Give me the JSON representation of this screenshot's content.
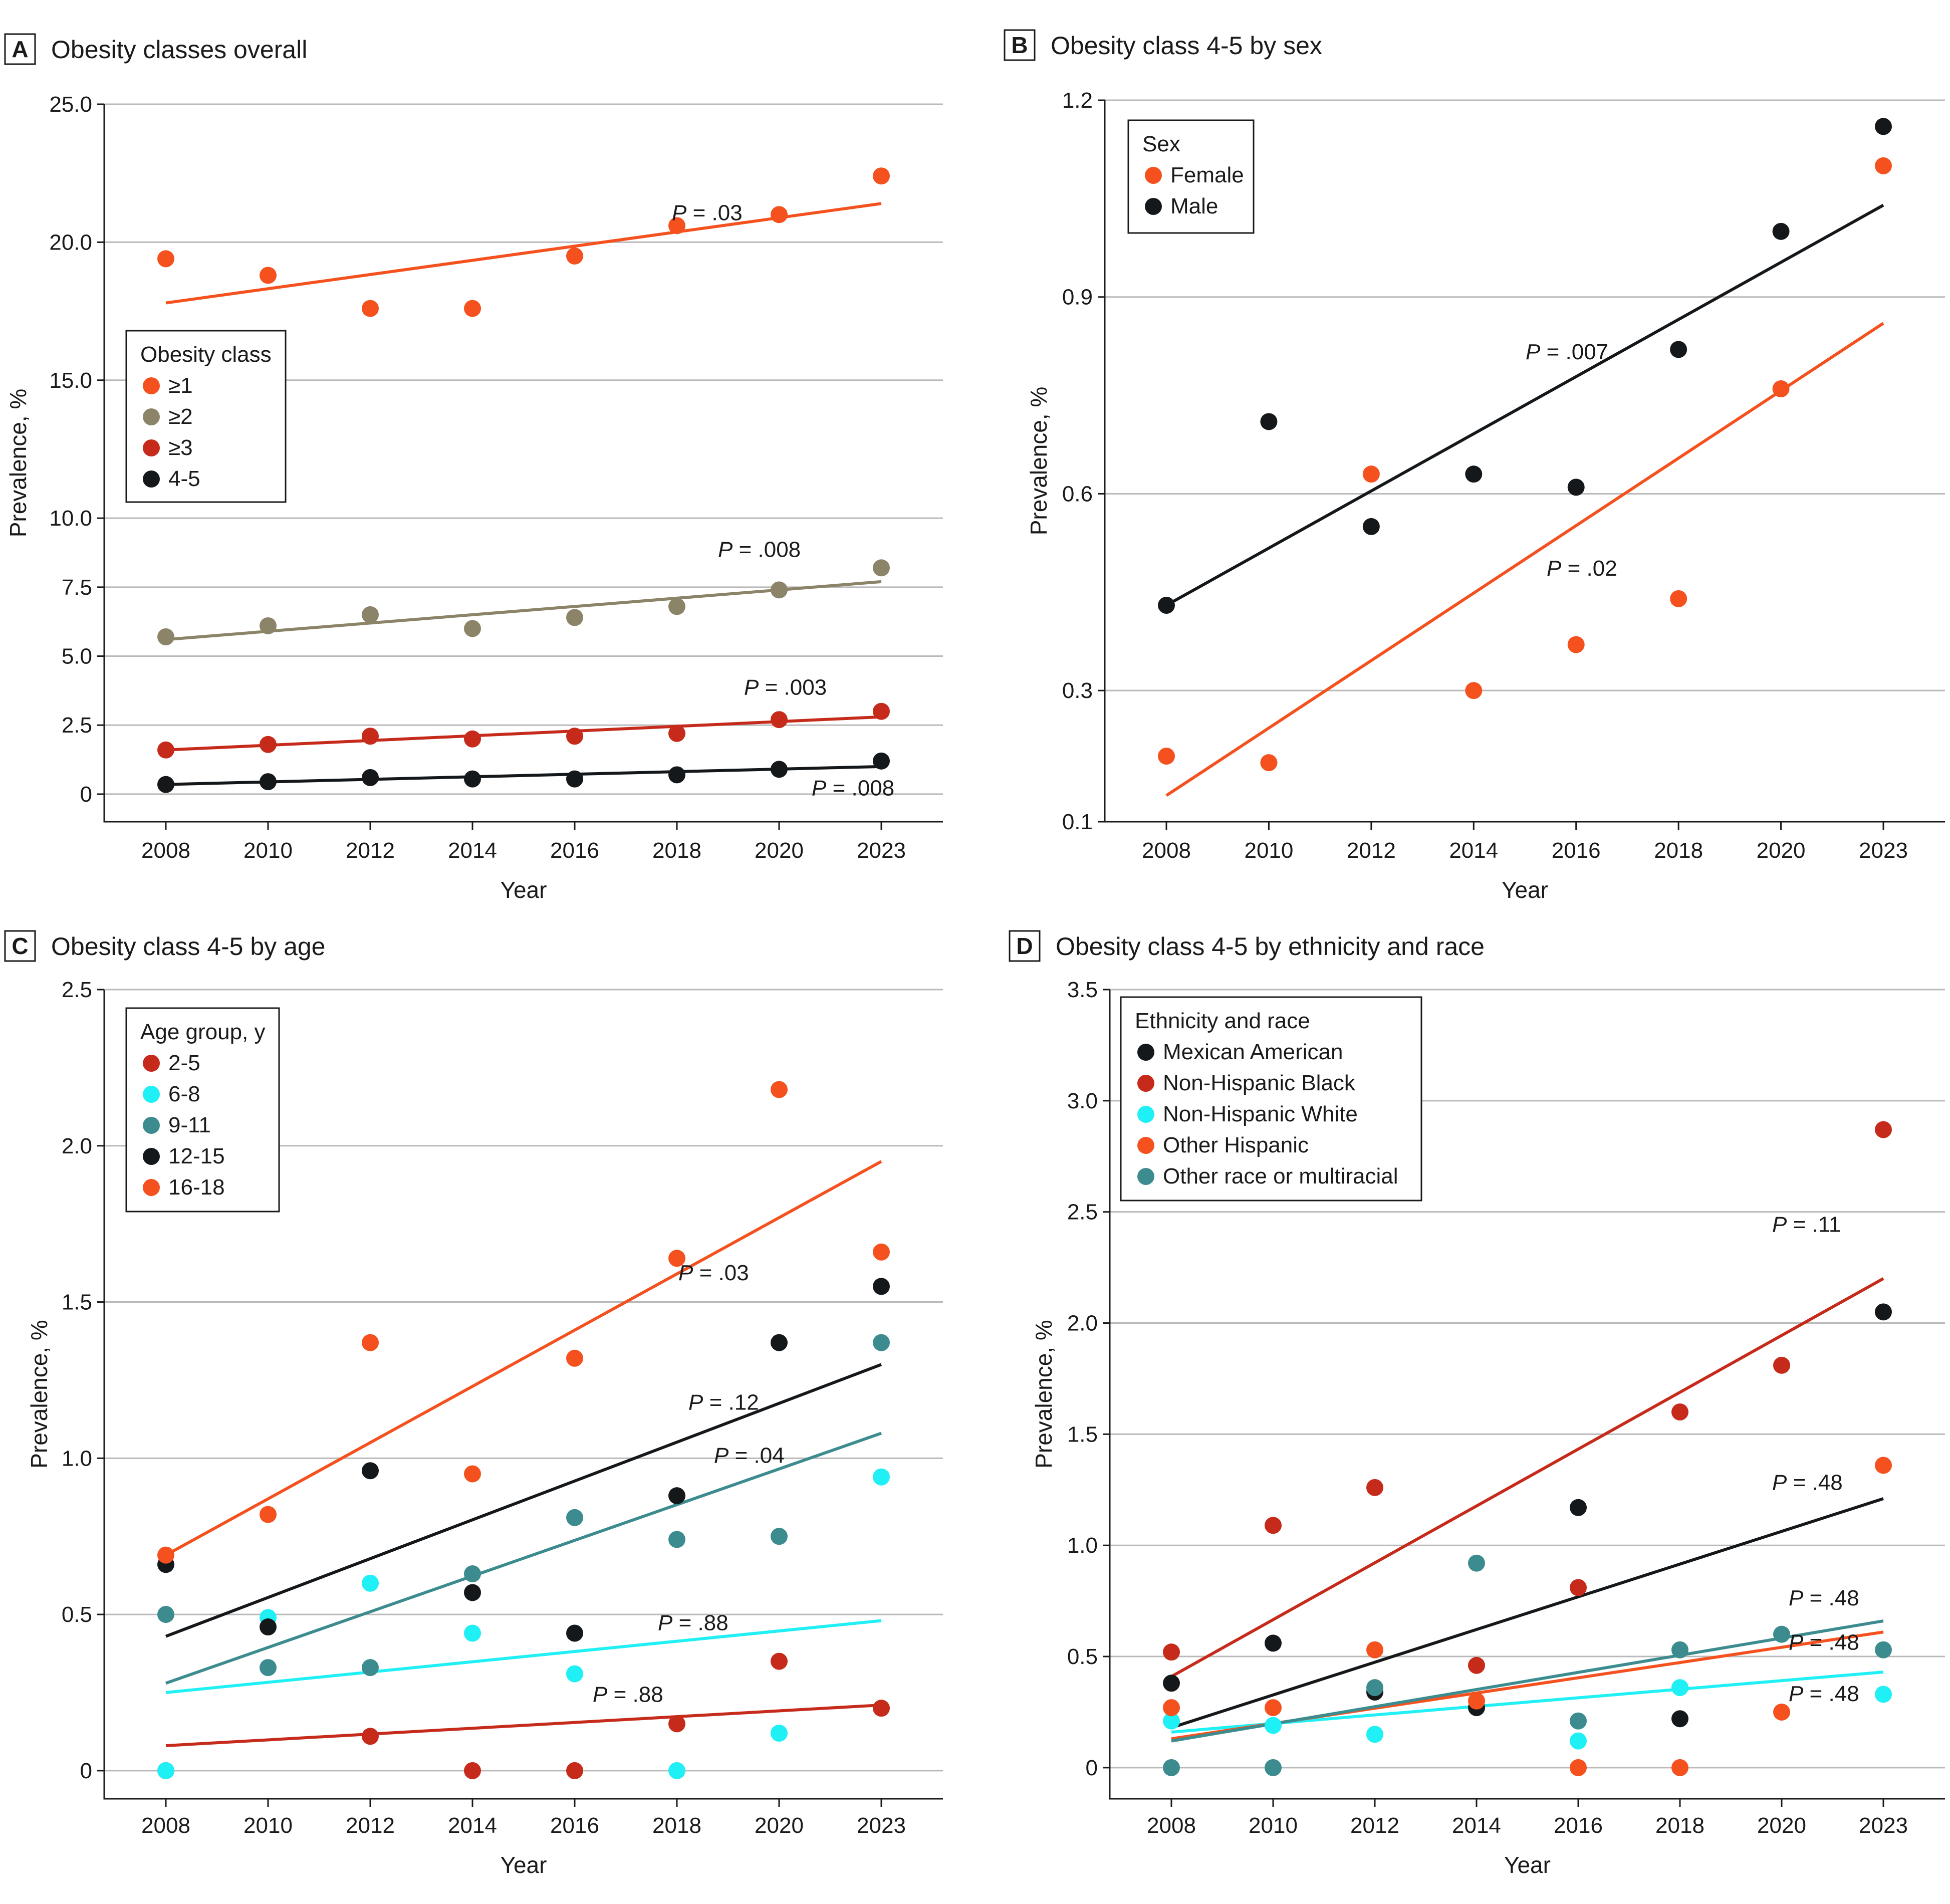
{
  "chart_data": [
    {
      "panel": "A",
      "title": "Obesity classes overall",
      "type": "scatter",
      "xlabel": "Year",
      "ylabel": "Prevalence, %",
      "categories": [
        "2008",
        "2010",
        "2012",
        "2014",
        "2016",
        "2018",
        "2020",
        "2023"
      ],
      "ylim": [
        -1.0,
        25.0
      ],
      "yticks": [
        0,
        2.5,
        5.0,
        7.5,
        10.0,
        15.0,
        20.0,
        25.0
      ],
      "ytick_labels": [
        "0",
        "2.5",
        "5.0",
        "7.5",
        "10.0",
        "15.0",
        "20.0",
        "25.0"
      ],
      "legend": {
        "title": "Obesity class",
        "position": "left-middle"
      },
      "series": [
        {
          "name": "≥1",
          "color": "#f4511e",
          "values": [
            19.4,
            18.8,
            17.6,
            17.6,
            19.5,
            20.6,
            21.0,
            22.4
          ],
          "fit": [
            17.8,
            21.4
          ],
          "p_label": "P = .03"
        },
        {
          "name": "≥2",
          "color": "#8c8468",
          "values": [
            5.7,
            6.1,
            6.5,
            6.0,
            6.4,
            6.8,
            7.4,
            8.2
          ],
          "fit": [
            5.6,
            7.7
          ],
          "p_label": "P = .008"
        },
        {
          "name": "≥3",
          "color": "#c62a1a",
          "values": [
            1.6,
            1.8,
            2.1,
            2.0,
            2.1,
            2.2,
            2.7,
            3.0
          ],
          "fit": [
            1.6,
            2.8
          ],
          "p_label": "P = .003"
        },
        {
          "name": "4-5",
          "color": "#15181b",
          "values": [
            0.35,
            0.45,
            0.6,
            0.55,
            0.55,
            0.7,
            0.9,
            1.2
          ],
          "fit": [
            0.35,
            1.0
          ],
          "p_label": "P = .008"
        }
      ]
    },
    {
      "panel": "B",
      "title": "Obesity class 4-5 by sex",
      "type": "scatter",
      "xlabel": "Year",
      "ylabel": "Prevalence, %",
      "categories": [
        "2008",
        "2010",
        "2012",
        "2014",
        "2016",
        "2018",
        "2020",
        "2023"
      ],
      "ylim": [
        0.1,
        1.2
      ],
      "yticks": [
        0.1,
        0.3,
        0.6,
        0.9,
        1.2
      ],
      "ytick_labels": [
        "0.1",
        "0.3",
        "0.6",
        "0.9",
        "1.2"
      ],
      "legend": {
        "title": "Sex",
        "position": "top-left"
      },
      "series": [
        {
          "name": "Female",
          "color": "#f4511e",
          "values": [
            0.2,
            0.19,
            0.63,
            0.3,
            0.37,
            0.44,
            0.76,
            1.1
          ],
          "fit": [
            0.14,
            0.86
          ],
          "p_label": "P = .02"
        },
        {
          "name": "Male",
          "color": "#15181b",
          "values": [
            0.43,
            0.71,
            0.55,
            0.63,
            0.61,
            0.82,
            1.0,
            1.16
          ],
          "fit": [
            0.43,
            1.04
          ],
          "p_label": "P = .007"
        }
      ]
    },
    {
      "panel": "C",
      "title": "Obesity class 4-5 by age",
      "type": "scatter",
      "xlabel": "Year",
      "ylabel": "Prevalence, %",
      "categories": [
        "2008",
        "2010",
        "2012",
        "2014",
        "2016",
        "2018",
        "2020",
        "2023"
      ],
      "ylim": [
        -0.09,
        2.5
      ],
      "yticks": [
        0,
        0.5,
        1.0,
        1.5,
        2.0,
        2.5
      ],
      "ytick_labels": [
        "0",
        "0.5",
        "1.0",
        "1.5",
        "2.0",
        "2.5"
      ],
      "legend": {
        "title": "Age group, y",
        "position": "top-left"
      },
      "series": [
        {
          "name": "2-5",
          "color": "#c62a1a",
          "values": [
            0,
            null,
            0.11,
            0,
            0,
            0.15,
            0.35,
            0.2
          ],
          "fit": [
            0.08,
            0.21
          ],
          "p_label": "P = .88"
        },
        {
          "name": "6-8",
          "color": "#1ff0f5",
          "values": [
            0,
            0.49,
            0.6,
            0.44,
            0.31,
            0,
            0.12,
            0.94
          ],
          "fit": [
            0.25,
            0.48
          ],
          "p_label": "P = .88"
        },
        {
          "name": "9-11",
          "color": "#3c8c8f",
          "values": [
            0.5,
            0.33,
            0.33,
            0.63,
            0.81,
            0.74,
            0.75,
            1.37
          ],
          "fit": [
            0.28,
            1.08
          ],
          "p_label": "P = .04"
        },
        {
          "name": "12-15",
          "color": "#15181b",
          "values": [
            0.66,
            0.46,
            0.96,
            0.57,
            0.44,
            0.88,
            1.37,
            1.55
          ],
          "fit": [
            0.43,
            1.3
          ],
          "p_label": "P = .12"
        },
        {
          "name": "16-18",
          "color": "#f4511e",
          "values": [
            0.69,
            0.82,
            1.37,
            0.95,
            1.32,
            1.64,
            2.18,
            1.66
          ],
          "fit": [
            0.69,
            1.95
          ],
          "p_label": "P = .03"
        }
      ]
    },
    {
      "panel": "D",
      "title": "Obesity class 4-5 by ethnicity and race",
      "type": "scatter",
      "xlabel": "Year",
      "ylabel": "Prevalence, %",
      "categories": [
        "2008",
        "2010",
        "2012",
        "2014",
        "2016",
        "2018",
        "2020",
        "2023"
      ],
      "ylim": [
        -0.14,
        3.5
      ],
      "yticks": [
        0,
        0.5,
        1.0,
        1.5,
        2.0,
        2.5,
        3.0,
        3.5
      ],
      "ytick_labels": [
        "0",
        "0.5",
        "1.0",
        "1.5",
        "2.0",
        "2.5",
        "3.0",
        "3.5"
      ],
      "legend": {
        "title": "Ethnicity and race",
        "position": "top-left"
      },
      "series": [
        {
          "name": "Mexican American",
          "color": "#15181b",
          "values": [
            0.38,
            0.56,
            0.34,
            0.27,
            1.17,
            0.22,
            null,
            2.05
          ],
          "fit": [
            0.18,
            1.21
          ],
          "p_label": "P = .48"
        },
        {
          "name": "Non-Hispanic Black",
          "color": "#c62a1a",
          "values": [
            0.52,
            1.09,
            1.26,
            0.46,
            0.81,
            1.6,
            1.81,
            2.87
          ],
          "fit": [
            0.41,
            2.2
          ],
          "p_label": "P = .11"
        },
        {
          "name": "Non-Hispanic White",
          "color": "#1ff0f5",
          "values": [
            0.21,
            0.19,
            0.15,
            null,
            0.12,
            0.36,
            null,
            0.33
          ],
          "fit": [
            0.16,
            0.43
          ],
          "p_label": "P = .48"
        },
        {
          "name": "Other Hispanic",
          "color": "#f4511e",
          "values": [
            0.27,
            0.27,
            0.53,
            0.3,
            0,
            0,
            0.25,
            1.36
          ],
          "fit": [
            0.13,
            0.61
          ],
          "p_label": "P = .48"
        },
        {
          "name": "Other race or multiracial",
          "color": "#3c8c8f",
          "values": [
            0,
            0,
            0.36,
            0.92,
            0.21,
            0.53,
            0.6,
            0.53
          ],
          "fit": [
            0.12,
            0.66
          ],
          "p_label": "P = .48"
        }
      ]
    }
  ]
}
